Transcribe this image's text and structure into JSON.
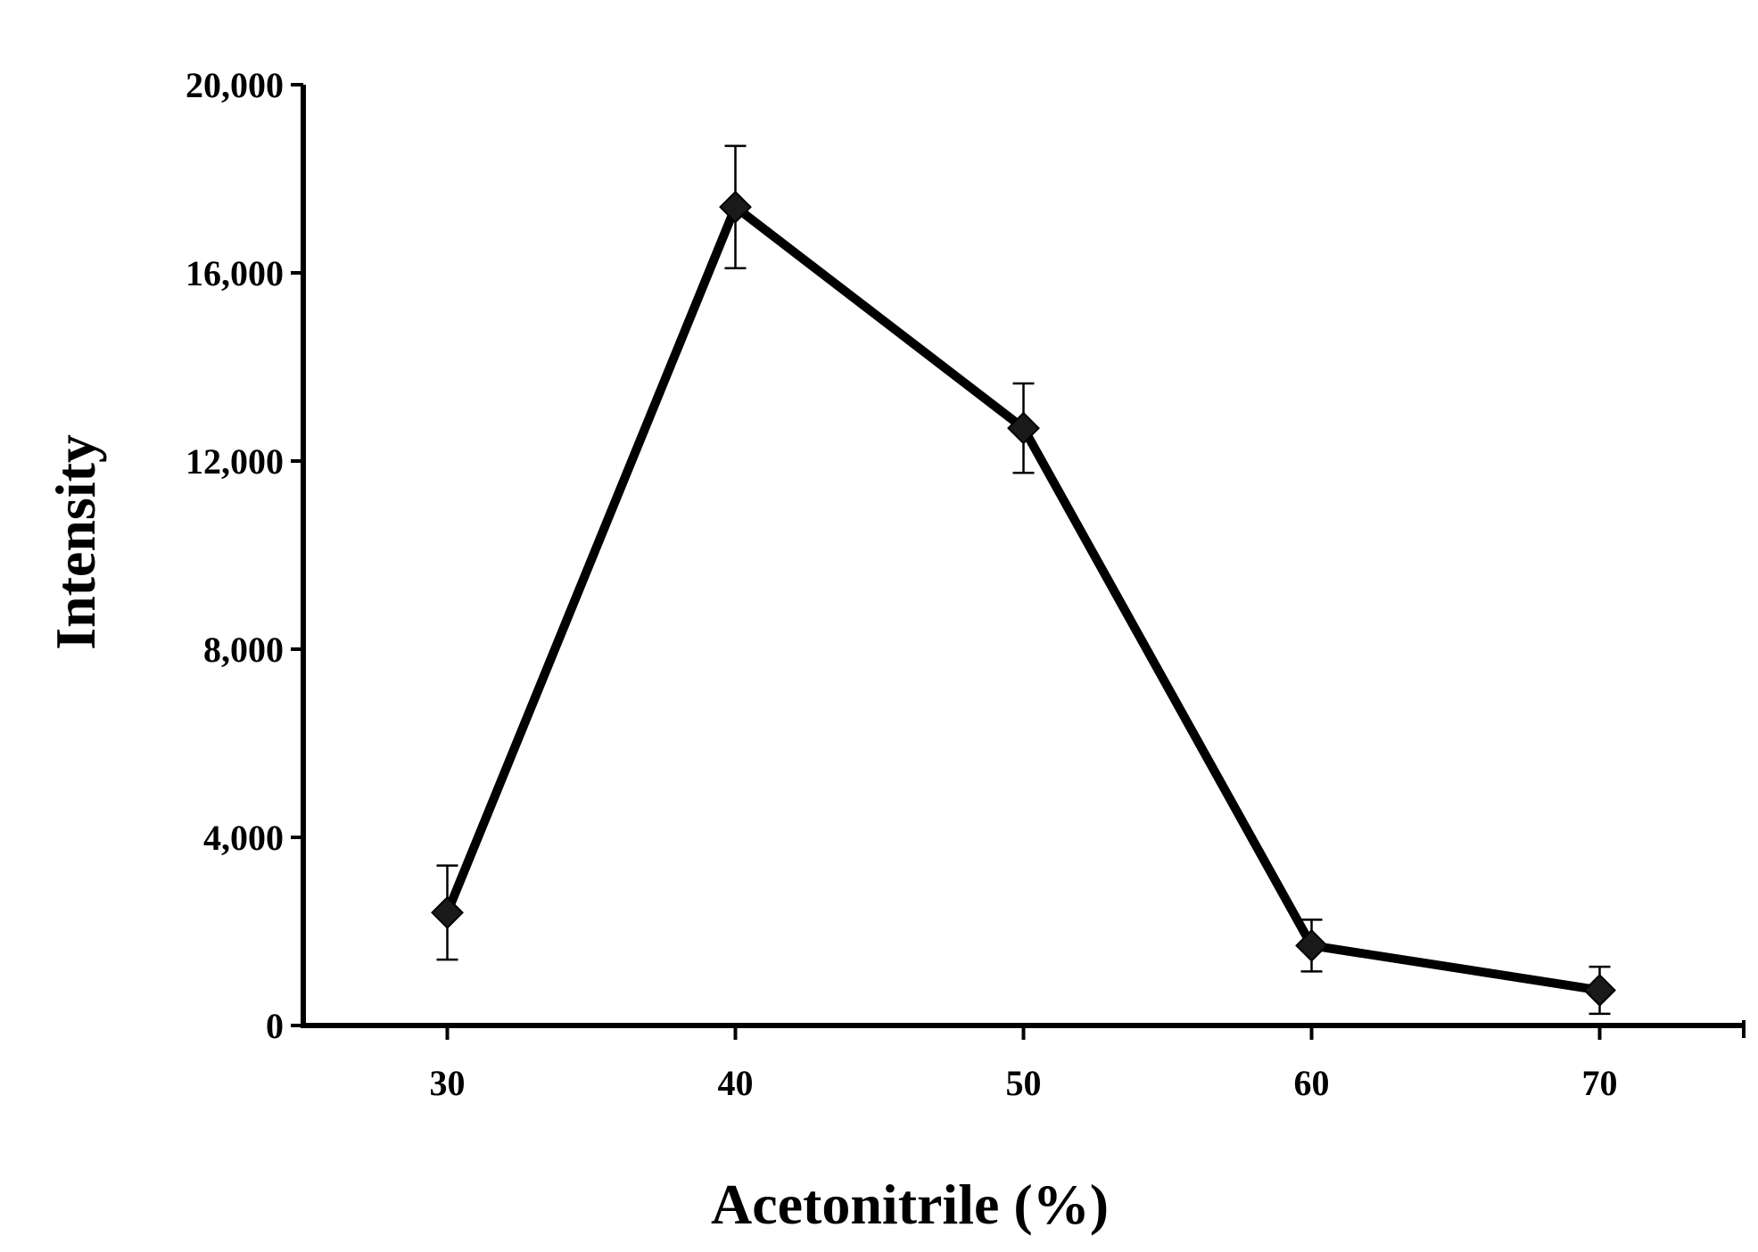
{
  "chart_data": {
    "type": "line",
    "title": "",
    "xlabel": "Acetonitrile (%)",
    "ylabel": "Intensity",
    "x": [
      30,
      40,
      50,
      60,
      70
    ],
    "series": [
      {
        "values": [
          2400,
          17400,
          12700,
          1700,
          750
        ],
        "error": [
          1000,
          1300,
          950,
          550,
          500
        ],
        "marker": "diamond"
      }
    ],
    "xlim": [
      25,
      75
    ],
    "ylim": [
      0,
      20000
    ],
    "xticks": [
      30,
      40,
      50,
      60,
      70
    ],
    "xtick_labels": [
      "30",
      "40",
      "50",
      "60",
      "70"
    ],
    "yticks": [
      0,
      4000,
      8000,
      12000,
      16000,
      20000
    ],
    "ytick_labels": [
      "0",
      "4,000",
      "8,000",
      "12,000",
      "16,000",
      "20,000"
    ],
    "grid": false,
    "legend": "none",
    "colors": {
      "line": "#000000",
      "marker": "#1a1a1a",
      "axis": "#000000"
    }
  }
}
